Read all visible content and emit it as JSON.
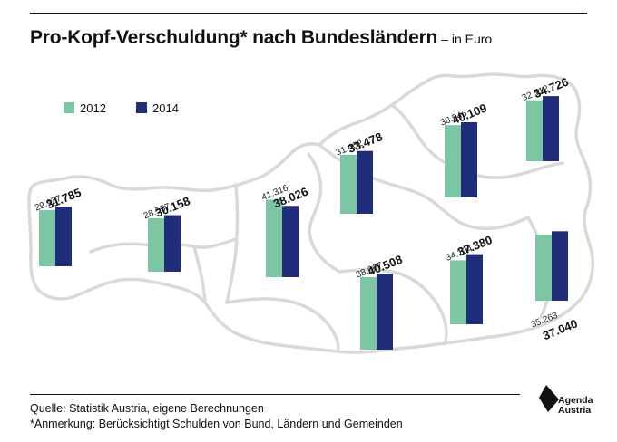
{
  "header": {
    "title": "Pro-Kopf-Verschuldung* nach Bundesländern",
    "subtitle": "– in Euro"
  },
  "footer": {
    "source": "Quelle: Statistik Austria, eigene Berechnungen",
    "note": "*Anmerkung: Berücksichtigt Schulden von Bund, Ländern und Gemeinden"
  },
  "logo": {
    "line1": "Agenda",
    "line2": "Austria"
  },
  "colors": {
    "2012": "#7cc6a3",
    "2014": "#1f2d7a",
    "map_outline": "#d9d9d9"
  },
  "chart_data": {
    "type": "bar",
    "title": "Pro-Kopf-Verschuldung* nach Bundesländern",
    "subtitle": "– in Euro",
    "xlabel": "",
    "ylabel": "",
    "legend_position": "top-left",
    "grid": false,
    "background": "map of Austria outline",
    "series": [
      {
        "name": "2012",
        "color": "#7cc6a3"
      },
      {
        "name": "2014",
        "color": "#1f2d7a"
      }
    ],
    "groups": [
      {
        "values": [
          29927,
          31785
        ],
        "labels": [
          "29.927",
          "31.785"
        ],
        "label_position": "top"
      },
      {
        "values": [
          28557,
          30158
        ],
        "labels": [
          "28.557",
          "30.158"
        ],
        "label_position": "top"
      },
      {
        "values": [
          41316,
          38026
        ],
        "labels": [
          "41.316",
          "38.026"
        ],
        "label_position": "top"
      },
      {
        "values": [
          31402,
          33478
        ],
        "labels": [
          "31.402",
          "33.478"
        ],
        "label_position": "top"
      },
      {
        "values": [
          38546,
          40109
        ],
        "labels": [
          "38.546",
          "40.109"
        ],
        "label_position": "top"
      },
      {
        "values": [
          32512,
          34726
        ],
        "labels": [
          "32.512",
          "34.726"
        ],
        "label_position": "top"
      },
      {
        "values": [
          38667,
          40508
        ],
        "labels": [
          "38.667",
          "40.508"
        ],
        "label_position": "top"
      },
      {
        "values": [
          34104,
          37380
        ],
        "labels": [
          "34.104",
          "37.380"
        ],
        "label_position": "top"
      },
      {
        "values": [
          35263,
          37040
        ],
        "labels": [
          "35.263",
          "37.040"
        ],
        "label_position": "bottom"
      }
    ]
  }
}
